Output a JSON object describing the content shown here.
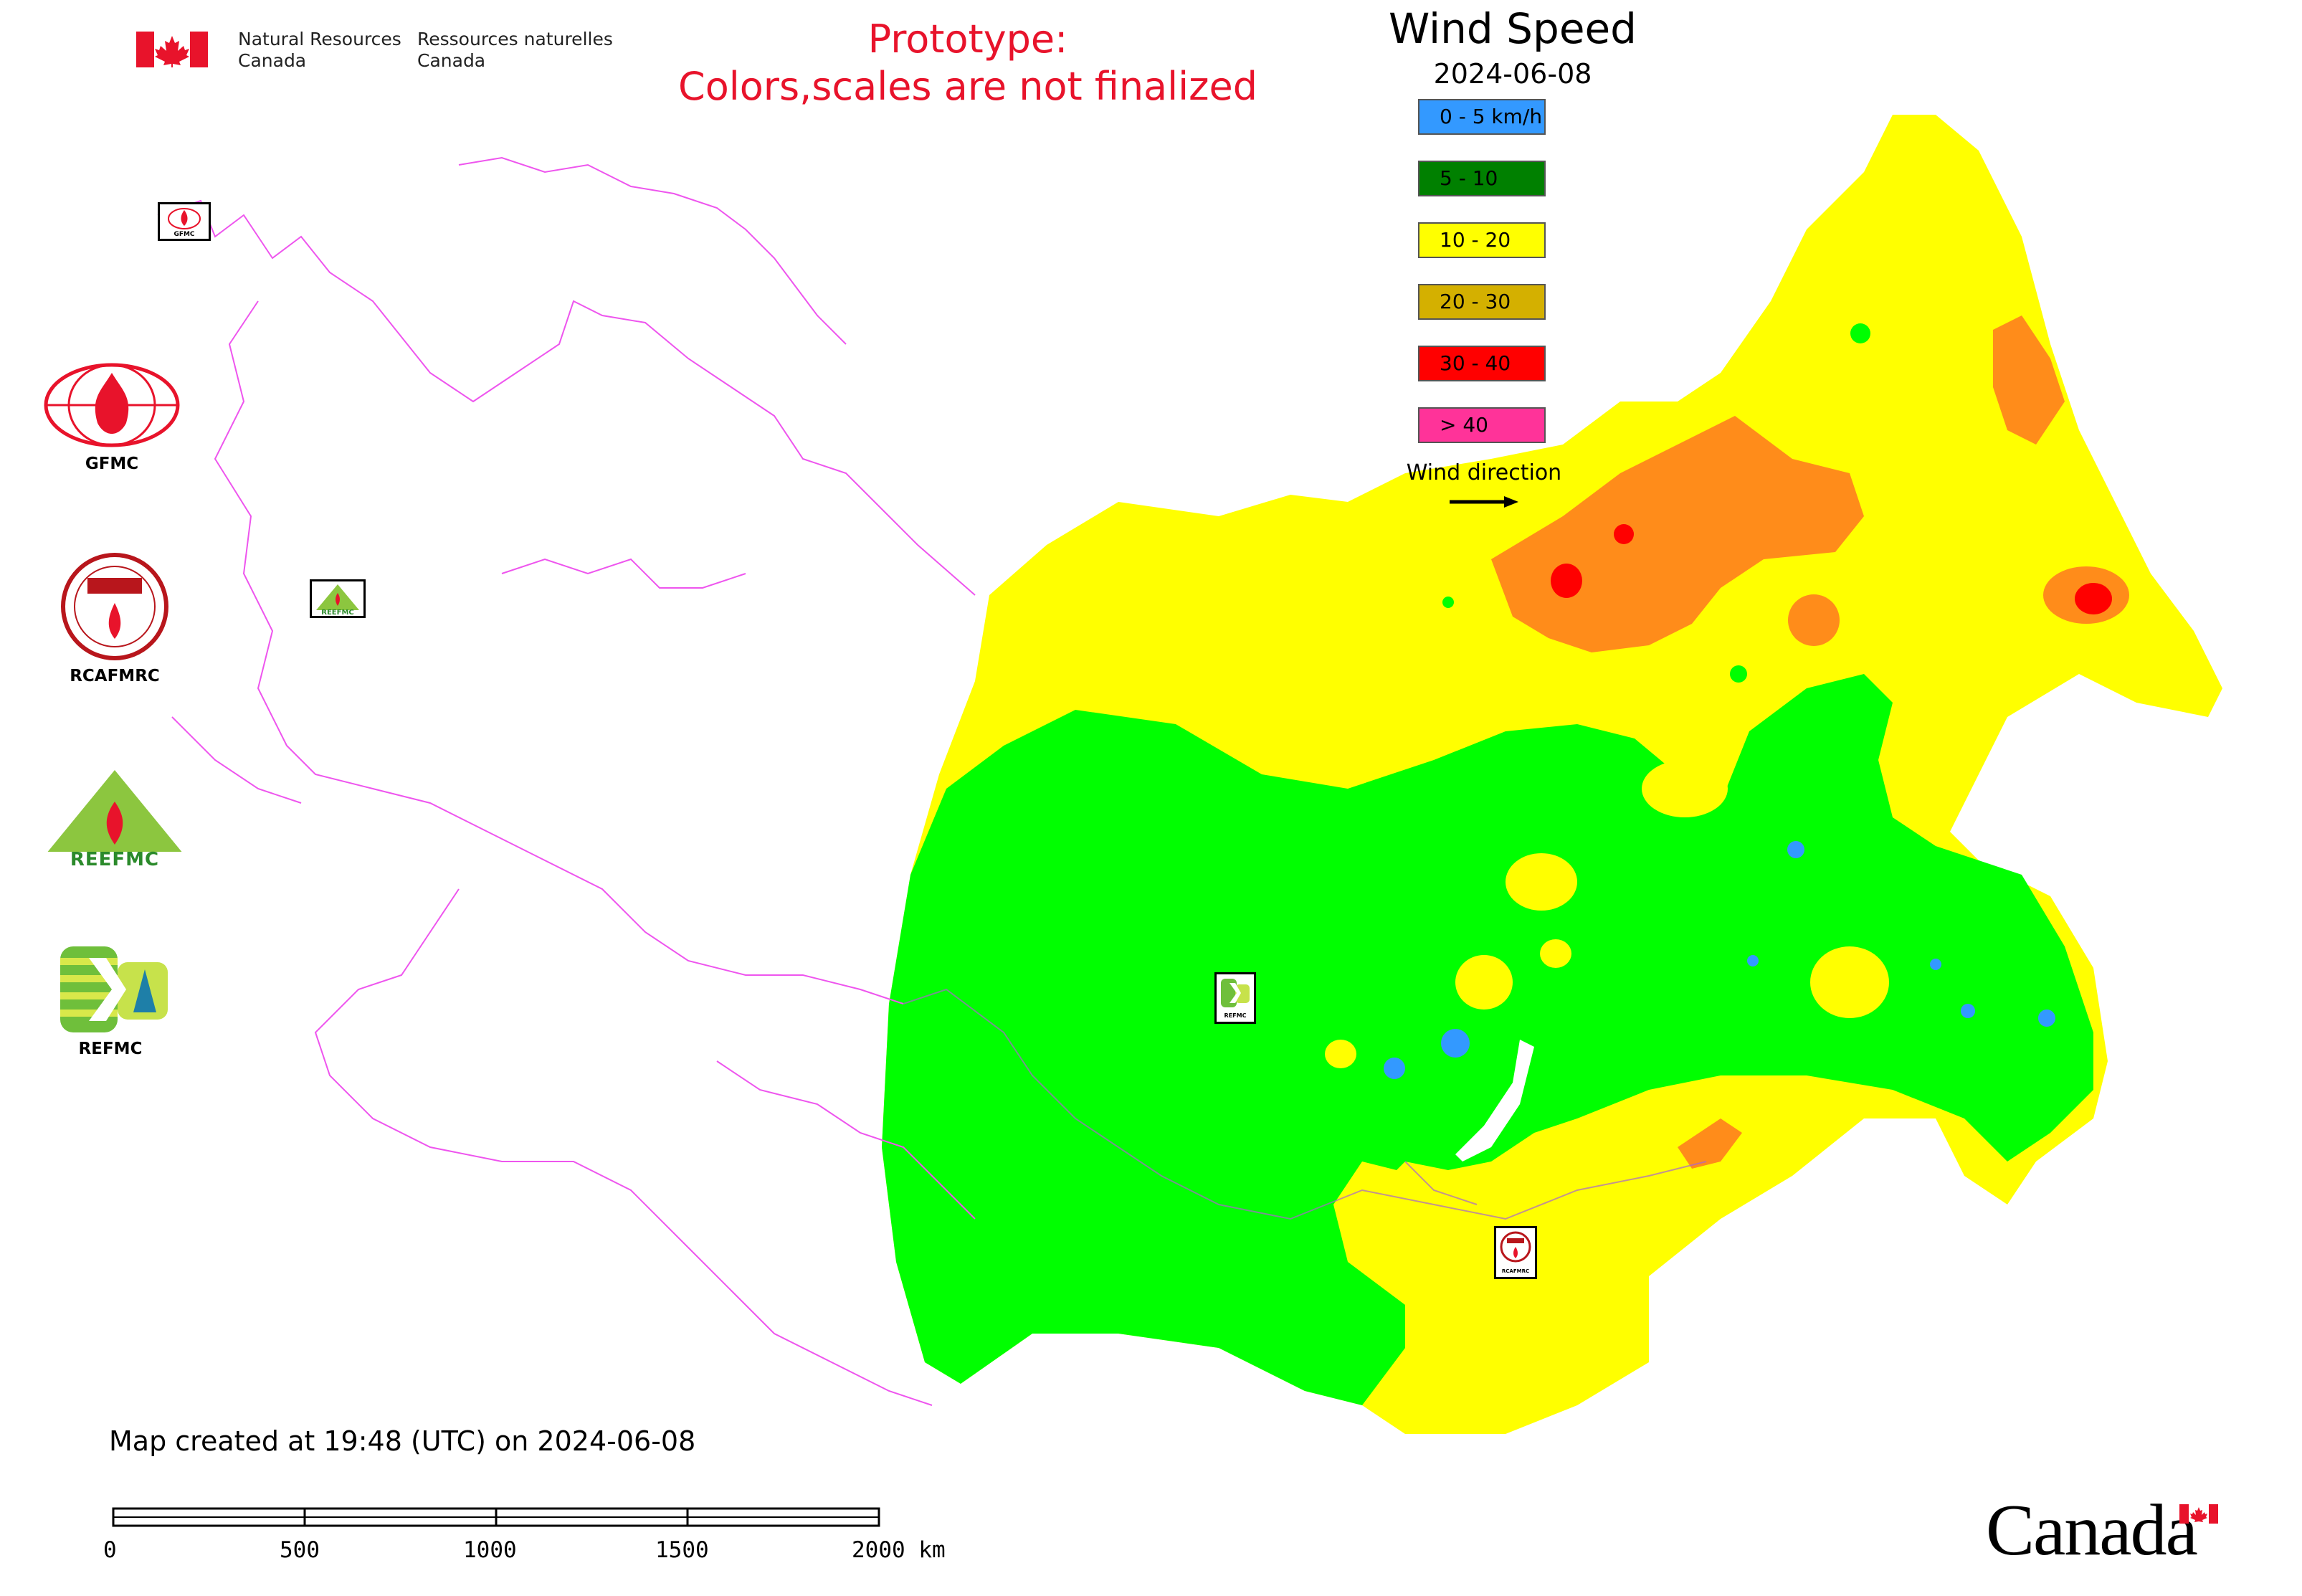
{
  "header": {
    "org_en_line1": "Natural Resources",
    "org_en_line2": "Canada",
    "org_fr_line1": "Ressources naturelles",
    "org_fr_line2": "Canada",
    "prototype_line1": "Prototype:",
    "prototype_line2": "Colors,scales are not finalized"
  },
  "map": {
    "title": "Wind Speed",
    "date": "2024-06-08",
    "colors": {
      "boundary": "#ee55ee",
      "calm": "#3399ff",
      "light": "#008000",
      "moderate": "#00ff00",
      "fresh": "#ffff00",
      "strong": "#ff8c1a",
      "very_strong": "#ff0000",
      "extreme": "#ff3399"
    }
  },
  "legend": {
    "items": [
      {
        "label": "0 - 5 km/h",
        "color": "#3399ff"
      },
      {
        "label": "5 - 10",
        "color": "#008000"
      },
      {
        "label": "10 - 20",
        "color": "#ffff00"
      },
      {
        "label": "20 - 30",
        "color": "#d4b000"
      },
      {
        "label": "30 - 40",
        "color": "#ff0000"
      },
      {
        "label": "> 40",
        "color": "#ff3399"
      }
    ],
    "wind_direction_label": "Wind direction"
  },
  "side_logos": [
    {
      "caption": "GFMC",
      "icon": "gfmc-logo-icon"
    },
    {
      "caption": "RCAFMRC",
      "icon": "rcafmrc-logo-icon"
    },
    {
      "caption": "",
      "icon": "reefmc-logo-icon",
      "wordmark": "REEFMC"
    },
    {
      "caption": "REFMC",
      "icon": "refmc-logo-icon"
    }
  ],
  "map_logos": {
    "gfmc_small": "GFMC",
    "reefmc_small": "REEFMC",
    "refmc_small": "REFMC",
    "rcafmrc_small": "RCAFMRC"
  },
  "footer": {
    "map_created": "Map created at 19:48 (UTC) on 2024-06-08",
    "scale_labels": [
      "0",
      "500",
      "1000",
      "1500",
      "2000 km"
    ],
    "canada_wordmark": "Canada"
  }
}
